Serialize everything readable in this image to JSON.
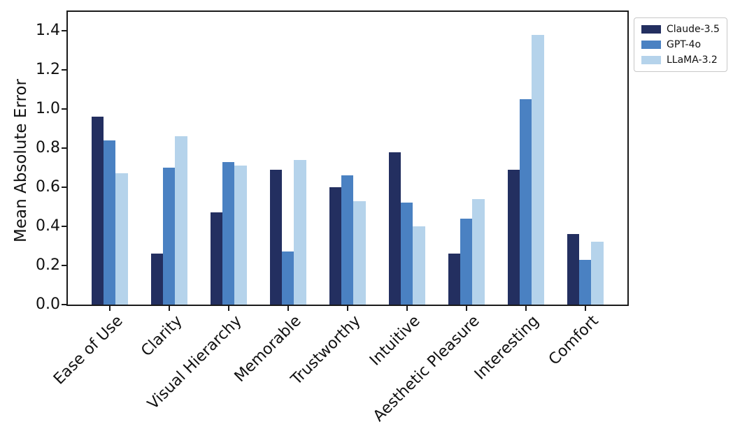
{
  "chart_data": {
    "type": "bar",
    "title": "",
    "xlabel": "",
    "ylabel": "Mean Absolute Error",
    "ylim": [
      0,
      1.5
    ],
    "yticks": [
      0.0,
      0.2,
      0.4,
      0.6,
      0.8,
      1.0,
      1.2,
      1.4
    ],
    "grid": false,
    "legend_position": "outside-upper-right",
    "categories": [
      "Ease of Use",
      "Clarity",
      "Visual Hierarchy",
      "Memorable",
      "Trustworthy",
      "Intuitive",
      "Aesthetic Pleasure",
      "Interesting",
      "Comfort"
    ],
    "series": [
      {
        "name": "Claude-3.5",
        "color": "#232f60",
        "values": [
          0.96,
          0.26,
          0.47,
          0.69,
          0.6,
          0.78,
          0.26,
          0.69,
          0.36
        ]
      },
      {
        "name": "GPT-4o",
        "color": "#4a81c2",
        "values": [
          0.84,
          0.7,
          0.73,
          0.27,
          0.66,
          0.52,
          0.44,
          1.05,
          0.23
        ]
      },
      {
        "name": "LLaMA-3.2",
        "color": "#b5d3eb",
        "values": [
          0.67,
          0.86,
          0.71,
          0.74,
          0.53,
          0.4,
          0.54,
          1.38,
          0.32
        ]
      }
    ]
  },
  "colors": {
    "background": "#ffffff",
    "axis": "#1a1a1a",
    "text": "#111111",
    "legend_border": "#c8c8c8"
  }
}
